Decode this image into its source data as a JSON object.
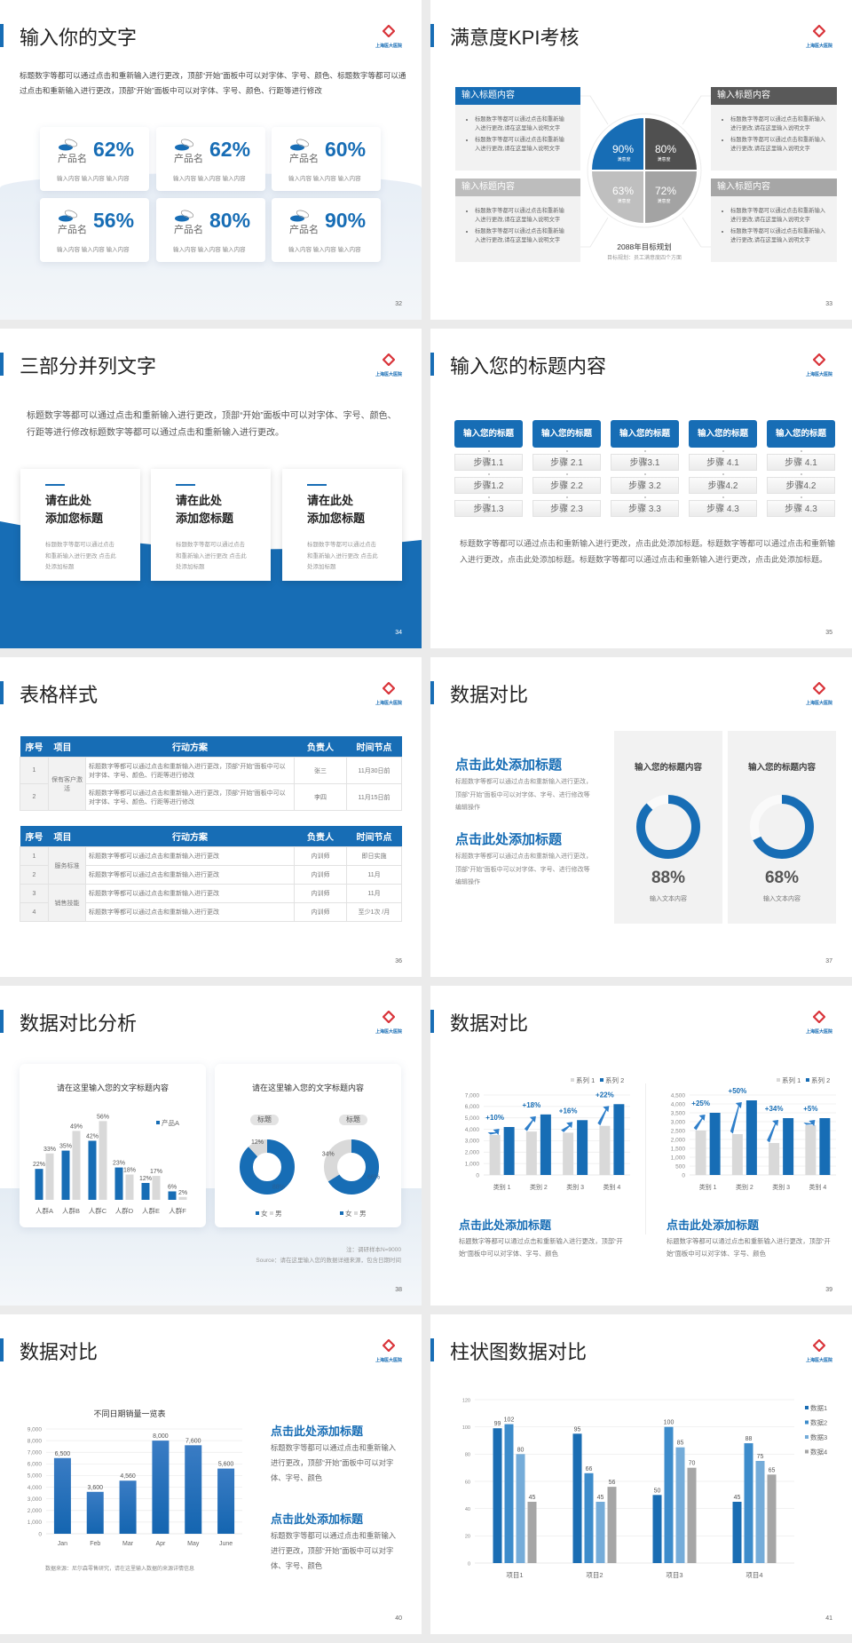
{
  "logo_text": "上海医大医院",
  "colors": {
    "primary_blue": "#176db5",
    "dark_gray": "#595959",
    "mid_gray": "#a6a6a6",
    "light_gray": "#d9d9d9"
  },
  "s32": {
    "title": "输入你的文字",
    "desc": "标题数字等都可以通过点击和重新输入进行更改，顶部“开始”面板中可以对字体、字号、颜色、标题数字等都可以通过点击和重新输入进行更改，顶部“开始”面板中可以对字体、字号、颜色、行距等进行修改",
    "cards": [
      {
        "icon": "pills-icon",
        "name": "产品名",
        "percent": "62%",
        "caption": "输入内容  输入内容  输入内容"
      },
      {
        "icon": "pills-icon",
        "name": "产品名",
        "percent": "62%",
        "caption": "输入内容  输入内容  输入内容"
      },
      {
        "icon": "pills-icon",
        "name": "产品名",
        "percent": "60%",
        "caption": "输入内容  输入内容  输入内容"
      },
      {
        "icon": "pills-icon",
        "name": "产品名",
        "percent": "56%",
        "caption": "输入内容  输入内容  输入内容"
      },
      {
        "icon": "pills-icon",
        "name": "产品名",
        "percent": "80%",
        "caption": "输入内容  输入内容  输入内容"
      },
      {
        "icon": "pills-icon",
        "name": "产品名",
        "percent": "90%",
        "caption": "输入内容  输入内容  输入内容"
      }
    ],
    "page": "32"
  },
  "s33": {
    "title": "满意度KPI考核",
    "boxes": [
      {
        "header": "输入标题内容",
        "color": "#176db5",
        "bullets": [
          "标题数字等都可以通过点击和重新输入进行更改,请在这里输入说明文字",
          "标题数字等都可以通过点击和重新输入进行更改,请在这里输入说明文字"
        ]
      },
      {
        "header": "输入标题内容",
        "color": "#bdbdbd",
        "bullets": [
          "标题数字等都可以通过点击和重新输入进行更改,请在这里输入说明文字",
          "标题数字等都可以通过点击和重新输入进行更改,请在这里输入说明文字"
        ]
      },
      {
        "header": "输入标题内容",
        "color": "#595959",
        "bullets": [
          "标题数字等都可以通过点击和重新输入进行更改,请在这里输入说明文字",
          "标题数字等都可以通过点击和重新输入进行更改,请在这里输入说明文字"
        ]
      },
      {
        "header": "输入标题内容",
        "color": "#a6a6a6",
        "bullets": [
          "标题数字等都可以通过点击和重新输入进行更改,请在这里输入说明文字",
          "标题数字等都可以通过点击和重新输入进行更改,请在这里输入说明文字"
        ]
      }
    ],
    "quadrants": [
      {
        "value": "90%",
        "label": "满意度",
        "color": "#176db5"
      },
      {
        "value": "80%",
        "label": "满意度",
        "color": "#505050"
      },
      {
        "value": "63%",
        "label": "满意度",
        "color": "#bfbfbf"
      },
      {
        "value": "72%",
        "label": "满意度",
        "color": "#a3a3a3"
      }
    ],
    "goal": "2088年目标规划",
    "goal_sub": "目标规划：员工满意度四个方面",
    "page": "33"
  },
  "s34": {
    "title": "三部分并列文字",
    "desc": "标题数字等都可以通过点击和重新输入进行更改，顶部“开始”面板中可以对字体、字号、颜色、行距等进行修改标题数字等都可以通过点击和重新输入进行更改。",
    "cards": [
      {
        "line1": "请在此处",
        "line2": "添加您标题",
        "text": "标题数字等都可以通过点击和重新输入进行更改 点击此处添加标题"
      },
      {
        "line1": "请在此处",
        "line2": "添加您标题",
        "text": "标题数字等都可以通过点击和重新输入进行更改 点击此处添加标题"
      },
      {
        "line1": "请在此处",
        "line2": "添加您标题",
        "text": "标题数字等都可以通过点击和重新输入进行更改 点击此处添加标题"
      }
    ],
    "page": "34"
  },
  "s35": {
    "title": "输入您的标题内容",
    "columns": [
      {
        "header": "输入您的标题",
        "steps": [
          "步骤1.1",
          "步骤1.2",
          "步骤1.3"
        ]
      },
      {
        "header": "输入您的标题",
        "steps": [
          "步骤 2.1",
          "步骤 2.2",
          "步骤 2.3"
        ]
      },
      {
        "header": "输入您的标题",
        "steps": [
          "步骤3.1",
          "步骤 3.2",
          "步骤 3.3"
        ]
      },
      {
        "header": "输入您的标题",
        "steps": [
          "步骤 4.1",
          "步骤4.2",
          "步骤 4.3"
        ]
      },
      {
        "header": "输入您的标题",
        "steps": [
          "步骤 4.1",
          "步骤4.2",
          "步骤 4.3"
        ]
      }
    ],
    "paragraph": "标题数字等都可以通过点击和重新输入进行更改，点击此处添加标题。标题数字等都可以通过点击和重新输入进行更改，点击此处添加标题。标题数字等都可以通过点击和重新输入进行更改，点击此处添加标题。",
    "page": "35"
  },
  "s36": {
    "title": "表格样式",
    "headers": [
      "序号",
      "项目",
      "行动方案",
      "负责人",
      "时间节点"
    ],
    "table1": {
      "groups": [
        "保有客户激活"
      ],
      "rows": [
        {
          "no": "1",
          "plan": "标题数字等都可以通过点击和重新输入进行更改，顶部“开始”面板中可以对字体、字号、颜色、行距等进行修改",
          "owner": "张三",
          "time": "11月30日前"
        },
        {
          "no": "2",
          "plan": "标题数字等都可以通过点击和重新输入进行更改，顶部“开始”面板中可以对字体、字号、颜色、行距等进行修改",
          "owner": "李四",
          "time": "11月15日前"
        }
      ]
    },
    "table2": {
      "groups": [
        "服务标准",
        "销售技能"
      ],
      "rows": [
        {
          "no": "1",
          "plan": "标题数字等都可以通过点击和重新输入进行更改",
          "owner": "内训师",
          "time": "即日实施"
        },
        {
          "no": "2",
          "plan": "标题数字等都可以通过点击和重新输入进行更改",
          "owner": "内训师",
          "time": "11月"
        },
        {
          "no": "3",
          "plan": "标题数字等都可以通过点击和重新输入进行更改",
          "owner": "内训师",
          "time": "11月"
        },
        {
          "no": "4",
          "plan": "标题数字等都可以通过点击和重新输入进行更改",
          "owner": "内训师",
          "time": "至少1次 /月"
        }
      ]
    },
    "page": "36"
  },
  "s37": {
    "title": "数据对比",
    "blocks": [
      {
        "heading": "点击此处添加标题",
        "text": "标题数字等都可以通过点击和重新输入进行更改，顶部“开始”面板中可以对字体、字号、进行修改等编辑操作"
      },
      {
        "heading": "点击此处添加标题",
        "text": "标题数字等都可以通过点击和重新输入进行更改，顶部“开始”面板中可以对字体、字号、进行修改等编辑操作"
      }
    ],
    "panels": [
      {
        "title": "输入您的标题内容",
        "value": 88,
        "label": "88%",
        "caption": "输入文本内容"
      },
      {
        "title": "输入您的标题内容",
        "value": 68,
        "label": "68%",
        "caption": "输入文本内容"
      }
    ],
    "page": "37"
  },
  "s38": {
    "title": "数据对比分析",
    "card_titles": [
      "请在这里输入您的文字标题内容",
      "请在这里输入您的文字标题内容"
    ],
    "pills": [
      "标题",
      "标题"
    ],
    "note": "注：调研样本N=9000",
    "source": "Source：请在这里输入您的数据详细来源，包含日期时间",
    "page": "38"
  },
  "s39": {
    "title": "数据对比",
    "blocks": [
      {
        "heading": "点击此处添加标题",
        "text": "标题数字等都可以通过点击和重新输入进行更改，顶部“开始”面板中可以对字体、字号、颜色"
      },
      {
        "heading": "点击此处添加标题",
        "text": "标题数字等都可以通过点击和重新输入进行更改，顶部“开始”面板中可以对字体、字号、颜色"
      }
    ],
    "page": "39"
  },
  "s40": {
    "title": "数据对比",
    "source": "数据来源：尼尔森零售研究，请在这里输入数据的来源详情信息",
    "blocks": [
      {
        "heading": "点击此处添加标题",
        "text": "标题数字等都可以通过点击和重新输入进行更改，顶部“开始”面板中可以对字体、字号、颜色"
      },
      {
        "heading": "点击此处添加标题",
        "text": "标题数字等都可以通过点击和重新输入进行更改，顶部“开始”面板中可以对字体、字号、颜色"
      }
    ],
    "page": "40"
  },
  "s41": {
    "title": "柱状图数据对比",
    "page": "41"
  },
  "chart_data": [
    {
      "type": "bar",
      "title": "请在这里输入您的文字标题内容",
      "categories": [
        "人群A",
        "人群B",
        "人群C",
        "人群D",
        "人群E",
        "人群F"
      ],
      "series": [
        {
          "name": "产品A",
          "color": "#176db5",
          "values": [
            22,
            35,
            42,
            23,
            12,
            6
          ]
        },
        {
          "color": "#d9d9d9",
          "values": [
            33,
            49,
            56,
            18,
            17,
            2
          ]
        }
      ],
      "value_suffix": "%",
      "ylim": [
        0,
        60
      ],
      "grid": false,
      "legend": "top-right"
    },
    {
      "type": "pie",
      "subtype": "donut",
      "title": "标题",
      "slices": [
        {
          "name": "女",
          "value": 88,
          "color": "#176db5"
        },
        {
          "name": "男",
          "value": 12,
          "color": "#d9d9d9"
        }
      ],
      "legend": "bottom"
    },
    {
      "type": "pie",
      "subtype": "donut",
      "title": "标题",
      "slices": [
        {
          "name": "女",
          "value": 66,
          "color": "#176db5"
        },
        {
          "name": "男",
          "value": 34,
          "color": "#d9d9d9"
        }
      ],
      "legend": "bottom"
    },
    {
      "type": "bar",
      "categories": [
        "类别 1",
        "类别 2",
        "类别 3",
        "类别 4"
      ],
      "series": [
        {
          "name": "系列 1",
          "color": "#d9d9d9",
          "values": [
            3500,
            3800,
            3700,
            4300
          ]
        },
        {
          "name": "系列 2",
          "color": "#176db5",
          "values": [
            4200,
            5300,
            4800,
            6200
          ]
        }
      ],
      "annotations": [
        "+10%",
        "+18%",
        "+16%",
        "+22%"
      ],
      "ylim": [
        0,
        7000
      ],
      "ystep": 1000,
      "grid": true,
      "legend": "top-right"
    },
    {
      "type": "bar",
      "categories": [
        "类别 1",
        "类别 2",
        "类别 3",
        "类别 4"
      ],
      "series": [
        {
          "name": "系列 1",
          "color": "#d9d9d9",
          "values": [
            2500,
            2300,
            1800,
            2800
          ]
        },
        {
          "name": "系列 2",
          "color": "#176db5",
          "values": [
            3500,
            4200,
            3200,
            3200
          ]
        }
      ],
      "annotations": [
        "+25%",
        "+50%",
        "+34%",
        "+5%"
      ],
      "ylim": [
        0,
        4500
      ],
      "ystep": 500,
      "grid": true,
      "legend": "top-right"
    },
    {
      "type": "bar",
      "title": "不同日期销量一览表",
      "categories": [
        "Jan",
        "Feb",
        "Mar",
        "Apr",
        "May",
        "June"
      ],
      "series": [
        {
          "color": "#1a6cb8",
          "values": [
            6500,
            3600,
            4560,
            8000,
            7600,
            5600
          ]
        }
      ],
      "ylim": [
        0,
        9000
      ],
      "ystep": 1000,
      "grid": true
    },
    {
      "type": "bar",
      "categories": [
        "项目1",
        "项目2",
        "项目3",
        "项目4"
      ],
      "series": [
        {
          "name": "数据1",
          "color": "#1a6db3",
          "values": [
            99,
            95,
            50,
            45
          ]
        },
        {
          "name": "数据2",
          "color": "#3d8ccb",
          "values": [
            102,
            66,
            100,
            88
          ]
        },
        {
          "name": "数据3",
          "color": "#75acd9",
          "values": [
            80,
            45,
            85,
            75
          ]
        },
        {
          "name": "数据4",
          "color": "#a6a6a6",
          "values": [
            45,
            56,
            70,
            65
          ]
        }
      ],
      "ylim": [
        0,
        120
      ],
      "ystep": 20,
      "grid": true,
      "legend": "right"
    }
  ]
}
